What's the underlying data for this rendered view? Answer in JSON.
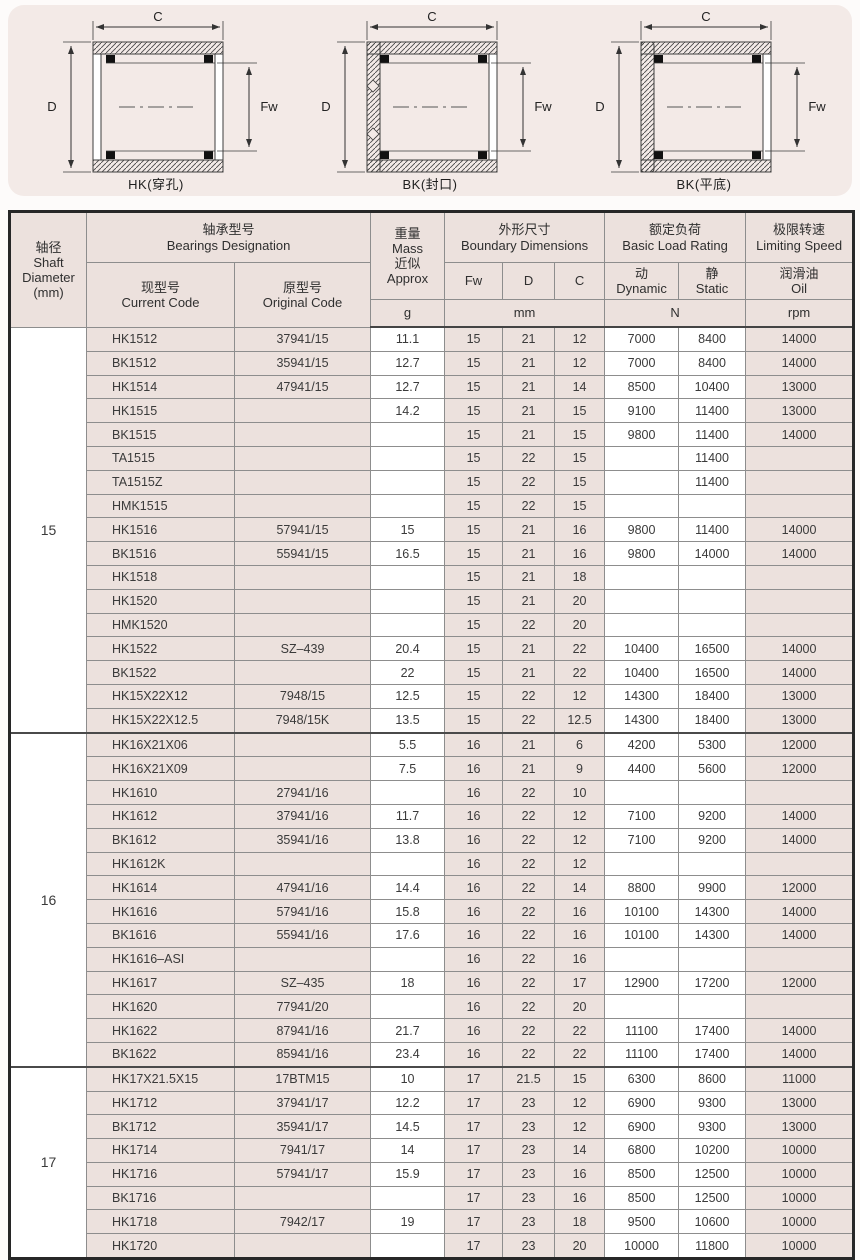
{
  "colors": {
    "panel_bg": "#f3eae7",
    "cell_pink": "#ece1dd",
    "cell_white": "#ffffff",
    "outer_border": "#272727",
    "grid_line": "#8d8d8d",
    "text": "#3a3a3a"
  },
  "diagrams": {
    "dim_c": "C",
    "dim_d": "D",
    "dim_fw": "Fw",
    "items": [
      {
        "caption": "HK(穿孔)",
        "type": "through"
      },
      {
        "caption": "BK(封口)",
        "type": "closed"
      },
      {
        "caption": "BK(平底)",
        "type": "flat"
      }
    ]
  },
  "table": {
    "header": {
      "shaft_cn": "轴径",
      "shaft_en1": "Shaft",
      "shaft_en2": "Diameter",
      "shaft_en3": "(mm)",
      "designation_cn": "轴承型号",
      "designation_en": "Bearings Designation",
      "current_cn": "现型号",
      "current_en": "Current Code",
      "original_cn": "原型号",
      "original_en": "Original Code",
      "mass_cn": "重量",
      "mass_en": "Mass",
      "mass_cn2": "近似",
      "mass_en2": "Approx",
      "mass_unit": "g",
      "boundary_cn": "外形尺寸",
      "boundary_en": "Boundary Dimensions",
      "fw": "Fw",
      "d": "D",
      "c": "C",
      "mm_unit": "mm",
      "load_cn": "额定负荷",
      "load_en": "Basic Load Rating",
      "dynamic_cn": "动",
      "dynamic_en": "Dynamic",
      "static_cn": "静",
      "static_en": "Static",
      "n_unit": "N",
      "speed_cn": "极限转速",
      "speed_en": "Limiting Speed",
      "oil_cn": "润滑油",
      "oil_en": "Oil",
      "rpm_unit": "rpm"
    },
    "sections": [
      {
        "shaft": "15",
        "rows": [
          [
            "HK1512",
            "37941/15",
            "11.1",
            "15",
            "21",
            "12",
            "7000",
            "8400",
            "14000"
          ],
          [
            "BK1512",
            "35941/15",
            "12.7",
            "15",
            "21",
            "12",
            "7000",
            "8400",
            "14000"
          ],
          [
            "HK1514",
            "47941/15",
            "12.7",
            "15",
            "21",
            "14",
            "8500",
            "10400",
            "13000"
          ],
          [
            "HK1515",
            "",
            "14.2",
            "15",
            "21",
            "15",
            "9100",
            "11400",
            "13000"
          ],
          [
            "BK1515",
            "",
            "",
            "15",
            "21",
            "15",
            "9800",
            "11400",
            "14000"
          ],
          [
            "TA1515",
            "",
            "",
            "15",
            "22",
            "15",
            "",
            "11400",
            ""
          ],
          [
            "TA1515Z",
            "",
            "",
            "15",
            "22",
            "15",
            "",
            "11400",
            ""
          ],
          [
            "HMK1515",
            "",
            "",
            "15",
            "22",
            "15",
            "",
            "",
            ""
          ],
          [
            "HK1516",
            "57941/15",
            "15",
            "15",
            "21",
            "16",
            "9800",
            "11400",
            "14000"
          ],
          [
            "BK1516",
            "55941/15",
            "16.5",
            "15",
            "21",
            "16",
            "9800",
            "14000",
            "14000"
          ],
          [
            "HK1518",
            "",
            "",
            "15",
            "21",
            "18",
            "",
            "",
            ""
          ],
          [
            "HK1520",
            "",
            "",
            "15",
            "21",
            "20",
            "",
            "",
            ""
          ],
          [
            "HMK1520",
            "",
            "",
            "15",
            "22",
            "20",
            "",
            "",
            ""
          ],
          [
            "HK1522",
            "SZ–439",
            "20.4",
            "15",
            "21",
            "22",
            "10400",
            "16500",
            "14000"
          ],
          [
            "BK1522",
            "",
            "22",
            "15",
            "21",
            "22",
            "10400",
            "16500",
            "14000"
          ],
          [
            "HK15X22X12",
            "7948/15",
            "12.5",
            "15",
            "22",
            "12",
            "14300",
            "18400",
            "13000"
          ],
          [
            "HK15X22X12.5",
            "7948/15K",
            "13.5",
            "15",
            "22",
            "12.5",
            "14300",
            "18400",
            "13000"
          ]
        ]
      },
      {
        "shaft": "16",
        "rows": [
          [
            "HK16X21X06",
            "",
            "5.5",
            "16",
            "21",
            "6",
            "4200",
            "5300",
            "12000"
          ],
          [
            "HK16X21X09",
            "",
            "7.5",
            "16",
            "21",
            "9",
            "4400",
            "5600",
            "12000"
          ],
          [
            "HK1610",
            "27941/16",
            "",
            "16",
            "22",
            "10",
            "",
            "",
            ""
          ],
          [
            "HK1612",
            "37941/16",
            "11.7",
            "16",
            "22",
            "12",
            "7100",
            "9200",
            "14000"
          ],
          [
            "BK1612",
            "35941/16",
            "13.8",
            "16",
            "22",
            "12",
            "7100",
            "9200",
            "14000"
          ],
          [
            "HK1612K",
            "",
            "",
            "16",
            "22",
            "12",
            "",
            "",
            ""
          ],
          [
            "HK1614",
            "47941/16",
            "14.4",
            "16",
            "22",
            "14",
            "8800",
            "9900",
            "12000"
          ],
          [
            "HK1616",
            "57941/16",
            "15.8",
            "16",
            "22",
            "16",
            "10100",
            "14300",
            "14000"
          ],
          [
            "BK1616",
            "55941/16",
            "17.6",
            "16",
            "22",
            "16",
            "10100",
            "14300",
            "14000"
          ],
          [
            "HK1616–ASI",
            "",
            "",
            "16",
            "22",
            "16",
            "",
            "",
            ""
          ],
          [
            "HK1617",
            "SZ–435",
            "18",
            "16",
            "22",
            "17",
            "12900",
            "17200",
            "12000"
          ],
          [
            "HK1620",
            "77941/20",
            "",
            "16",
            "22",
            "20",
            "",
            "",
            ""
          ],
          [
            "HK1622",
            "87941/16",
            "21.7",
            "16",
            "22",
            "22",
            "11100",
            "17400",
            "14000"
          ],
          [
            "BK1622",
            "85941/16",
            "23.4",
            "16",
            "22",
            "22",
            "11100",
            "17400",
            "14000"
          ]
        ]
      },
      {
        "shaft": "17",
        "rows": [
          [
            "HK17X21.5X15",
            "17BTM15",
            "10",
            "17",
            "21.5",
            "15",
            "6300",
            "8600",
            "11000"
          ],
          [
            "HK1712",
            "37941/17",
            "12.2",
            "17",
            "23",
            "12",
            "6900",
            "9300",
            "13000"
          ],
          [
            "BK1712",
            "35941/17",
            "14.5",
            "17",
            "23",
            "12",
            "6900",
            "9300",
            "13000"
          ],
          [
            "HK1714",
            "7941/17",
            "14",
            "17",
            "23",
            "14",
            "6800",
            "10200",
            "10000"
          ],
          [
            "HK1716",
            "57941/17",
            "15.9",
            "17",
            "23",
            "16",
            "8500",
            "12500",
            "10000"
          ],
          [
            "BK1716",
            "",
            "",
            "17",
            "23",
            "16",
            "8500",
            "12500",
            "10000"
          ],
          [
            "HK1718",
            "7942/17",
            "19",
            "17",
            "23",
            "18",
            "9500",
            "10600",
            "10000"
          ],
          [
            "HK1720",
            "",
            "",
            "17",
            "23",
            "20",
            "10000",
            "11800",
            "10000"
          ]
        ]
      }
    ]
  }
}
